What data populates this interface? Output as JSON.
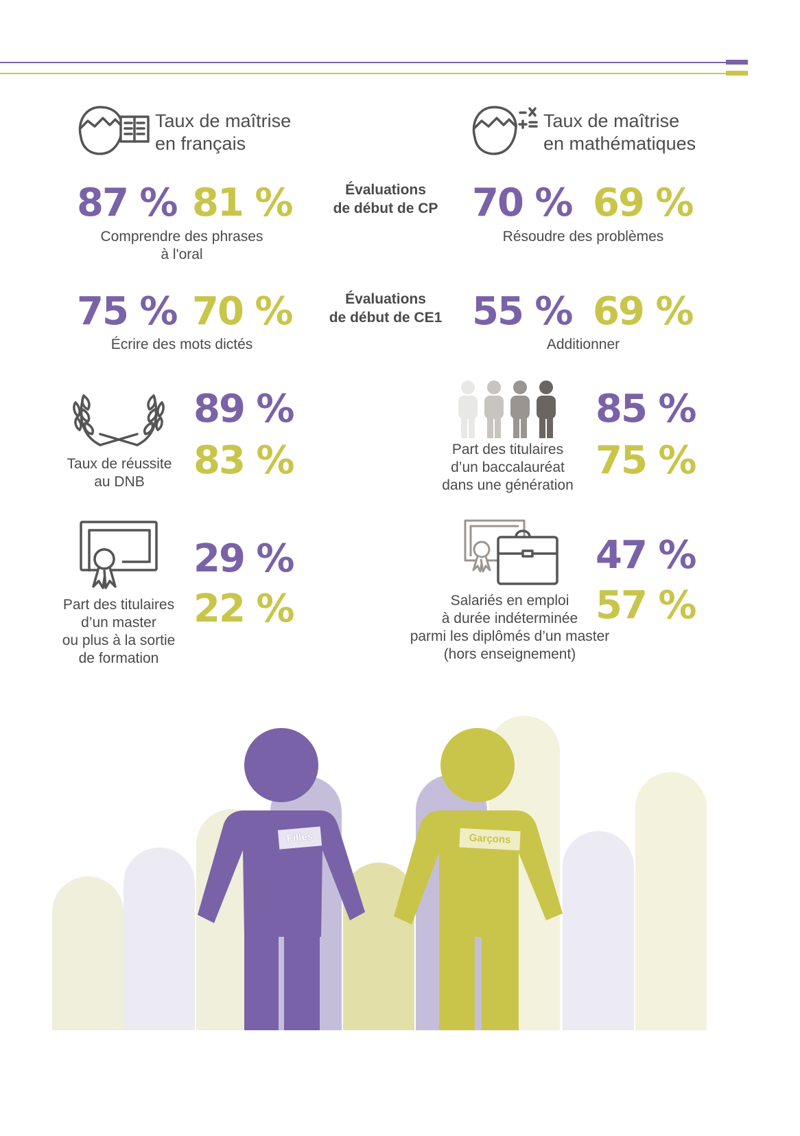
{
  "colors": {
    "filles": "#7a62a8",
    "garcons": "#c9c54a"
  },
  "francais": {
    "title_line1": "Taux de maîtrise",
    "title_line2": "en français",
    "icon": "head-book-icon",
    "cp": {
      "filles": "87 %",
      "garcons": "81 %",
      "label_line1": "Comprendre des phrases",
      "label_line2": "à l'oral"
    },
    "ce1": {
      "filles": "75 %",
      "garcons": "70 %",
      "label": "Écrire des mots dictés"
    }
  },
  "maths": {
    "title_line1": "Taux de maîtrise",
    "title_line2": "en mathématiques",
    "icon": "head-math-icon",
    "cp": {
      "filles": "70 %",
      "garcons": "69 %",
      "label": "Résoudre des problèmes"
    },
    "ce1": {
      "filles": "55 %",
      "garcons": "69 %",
      "label": "Additionner"
    }
  },
  "evaluations": {
    "cp_line1": "Évaluations",
    "cp_line2": "de début de CP",
    "ce1_line1": "Évaluations",
    "ce1_line2": "de début de CE1"
  },
  "dnb": {
    "icon": "laurel-icon",
    "filles": "89 %",
    "garcons": "83 %",
    "label_line1": "Taux de réussite",
    "label_line2": "au DNB"
  },
  "bac": {
    "icon": "people-group-icon",
    "filles": "85 %",
    "garcons": "75 %",
    "label_line1": "Part des titulaires",
    "label_line2": "d’un baccalauréat",
    "label_line3": "dans une génération"
  },
  "master": {
    "icon": "diploma-icon",
    "filles": "29 %",
    "garcons": "22 %",
    "label_line1": "Part des titulaires",
    "label_line2": "d’un master",
    "label_line3": "ou plus à la sortie",
    "label_line4": "de formation"
  },
  "cdi": {
    "icon": "diploma-briefcase-icon",
    "filles": "47 %",
    "garcons": "57 %",
    "label_line1": "Salariés en emploi",
    "label_line2": "à durée indéterminée",
    "label_line3": "parmi les diplômés d’un master",
    "label_line4": "(hors enseignement)"
  },
  "figures": {
    "filles_tag": "Filles",
    "garcons_tag": "Garçons"
  }
}
